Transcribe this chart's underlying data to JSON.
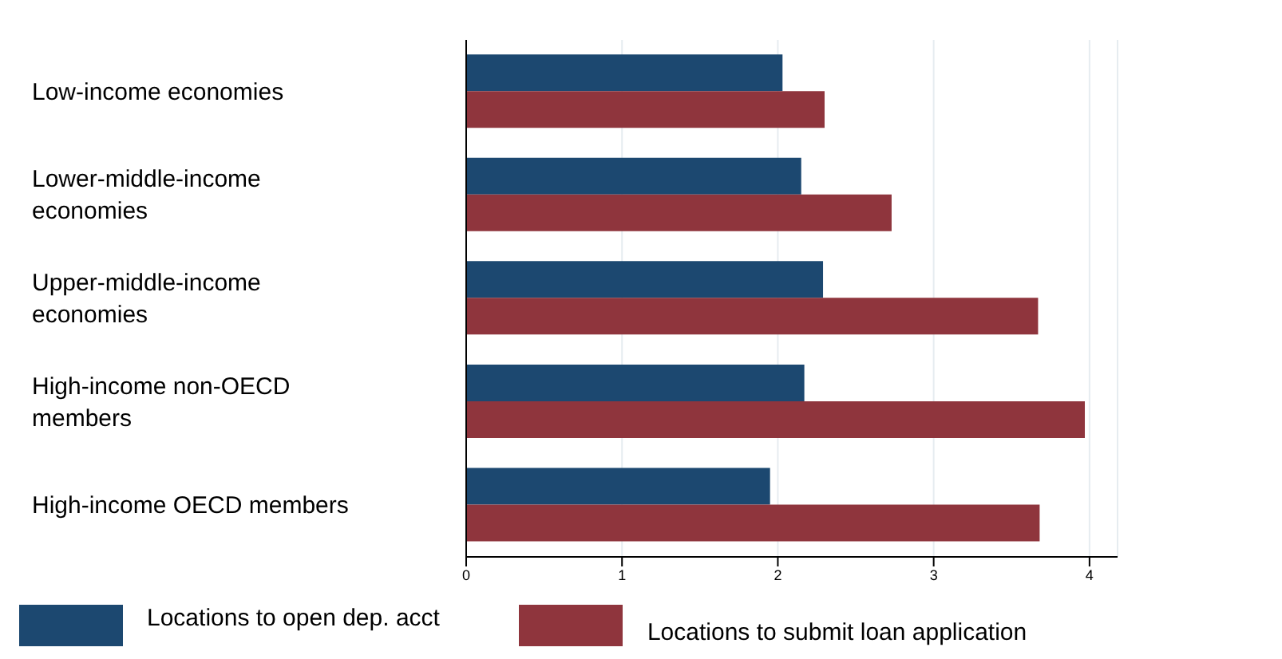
{
  "chart_data": {
    "type": "bar",
    "orientation": "horizontal",
    "categories": [
      "Low-income economies",
      "Lower-middle-income economies",
      "Upper-middle-income economies",
      "High-income non-OECD members",
      "High-income OECD members"
    ],
    "series": [
      {
        "name": "Locations to open dep. acct",
        "color": "#1c4870",
        "values": [
          2.03,
          2.15,
          2.29,
          2.17,
          1.95
        ]
      },
      {
        "name": "Locations to submit loan application",
        "color": "#8f353d",
        "values": [
          2.3,
          2.73,
          3.67,
          3.97,
          3.68
        ]
      }
    ],
    "xlim": [
      0,
      4.18
    ],
    "xticks": [
      0,
      1,
      2,
      3,
      4
    ],
    "grid": "x",
    "legend": "bottom"
  }
}
